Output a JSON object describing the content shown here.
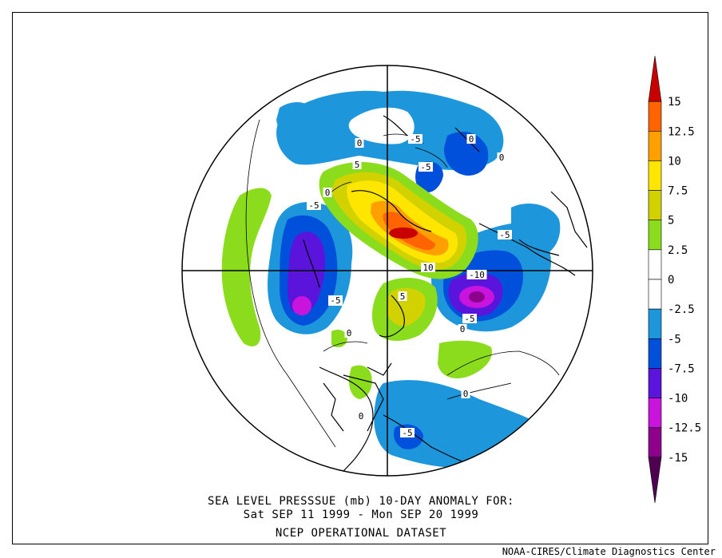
{
  "title": {
    "line1": "SEA LEVEL PRESSSUE (mb)   10-DAY ANOMALY FOR:",
    "line2": "Sat SEP 11 1999 - Mon SEP 20 1999",
    "line3": "NCEP OPERATIONAL DATASET"
  },
  "credit": "NOAA-CIRES/Climate Diagnostics Center",
  "colorbar": {
    "labels": [
      "15",
      "12.5",
      "10",
      "7.5",
      "5",
      "2.5",
      "0",
      "-2.5",
      "-5",
      "-7.5",
      "-10",
      "-12.5",
      "-15"
    ],
    "colors_top_to_bottom": [
      "#c80000",
      "#ff6400",
      "#ffa000",
      "#ffe600",
      "#d2d200",
      "#8cdc1e",
      "#ffffff",
      "#ffffff",
      "#1e96dc",
      "#0050dc",
      "#5a14dc",
      "#c814dc",
      "#8c008c",
      "#500050"
    ]
  },
  "contour_labels": [
    {
      "text": "5"
    },
    {
      "text": "0"
    },
    {
      "text": "-5"
    },
    {
      "text": "0"
    },
    {
      "text": "-5"
    },
    {
      "text": "0"
    },
    {
      "text": "-5"
    },
    {
      "text": "0"
    },
    {
      "text": "-5"
    },
    {
      "text": "10"
    },
    {
      "text": "5"
    },
    {
      "text": "-10"
    },
    {
      "text": "-5"
    },
    {
      "text": "-5"
    },
    {
      "text": "0"
    },
    {
      "text": "0"
    },
    {
      "text": "0"
    },
    {
      "text": "0"
    },
    {
      "text": "-5"
    },
    {
      "text": "-5"
    }
  ]
}
